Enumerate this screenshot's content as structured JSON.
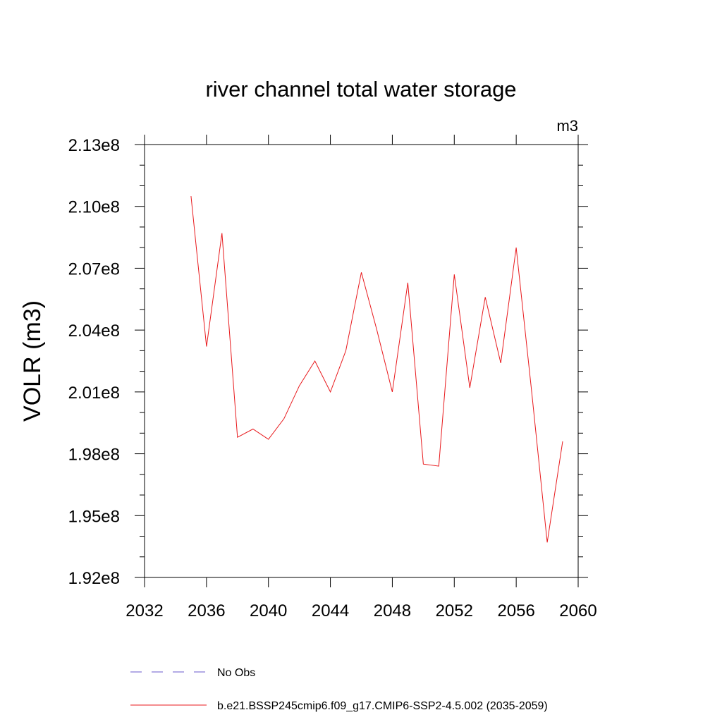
{
  "chart_data": {
    "type": "line",
    "title": "river channel total water storage",
    "units_label": "m3",
    "xlabel": "",
    "ylabel": "VOLR  (m3)",
    "xlim": [
      2032,
      2060
    ],
    "ylim": [
      192000000.0,
      213000000.0
    ],
    "x_ticks": [
      2032,
      2036,
      2040,
      2044,
      2048,
      2052,
      2056,
      2060
    ],
    "x_tick_labels": [
      "2032",
      "2036",
      "2040",
      "2044",
      "2048",
      "2052",
      "2056",
      "2060"
    ],
    "y_ticks": [
      192000000.0,
      195000000.0,
      198000000.0,
      201000000.0,
      204000000.0,
      207000000.0,
      210000000.0,
      213000000.0
    ],
    "y_tick_labels": [
      "1.92e8",
      "1.95e8",
      "1.98e8",
      "2.01e8",
      "2.04e8",
      "2.07e8",
      "2.10e8",
      "2.13e8"
    ],
    "grid": false,
    "series": [
      {
        "name": "b.e21.BSSP245cmip6.f09_g17.CMIP6-SSP2-4.5.002 (2035-2059)",
        "color": "#e8191c",
        "style": "solid",
        "x": [
          2035,
          2036,
          2037,
          2038,
          2039,
          2040,
          2041,
          2042,
          2043,
          2044,
          2045,
          2046,
          2047,
          2048,
          2049,
          2050,
          2051,
          2052,
          2053,
          2054,
          2055,
          2056,
          2057,
          2058,
          2059
        ],
        "values": [
          210500000.0,
          203200000.0,
          208700000.0,
          198800000.0,
          199200000.0,
          198700000.0,
          199700000.0,
          201300000.0,
          202500000.0,
          201000000.0,
          203000000.0,
          206800000.0,
          204000000.0,
          201000000.0,
          206300000.0,
          197500000.0,
          197400000.0,
          206700000.0,
          201200000.0,
          205600000.0,
          202400000.0,
          208000000.0,
          201000000.0,
          193700000.0,
          198600000.0
        ]
      }
    ],
    "legend": {
      "placement": "bottom-left",
      "entries": [
        {
          "label": "No Obs",
          "color": "#6a5acd",
          "style": "dashed"
        },
        {
          "label": "b.e21.BSSP245cmip6.f09_g17.CMIP6-SSP2-4.5.002 (2035-2059)",
          "color": "#e8191c",
          "style": "solid"
        }
      ]
    }
  }
}
